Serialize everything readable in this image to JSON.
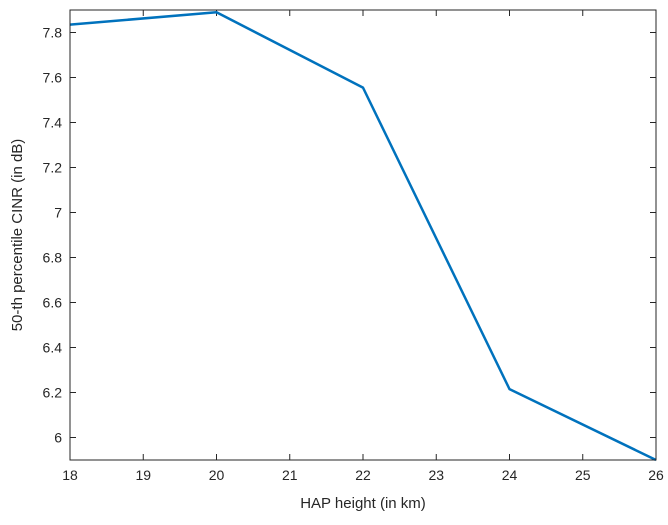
{
  "chart_data": {
    "type": "line",
    "title": "",
    "xlabel": "HAP height (in km)",
    "ylabel": "50-th percentile CINR (in dB)",
    "xlim": [
      18,
      26
    ],
    "ylim": [
      5.9,
      7.9
    ],
    "x_ticks": [
      18,
      19,
      20,
      21,
      22,
      23,
      24,
      25,
      26
    ],
    "y_ticks": [
      6,
      6.2,
      6.4,
      6.6,
      6.8,
      7,
      7.2,
      7.4,
      7.6,
      7.8
    ],
    "grid": false,
    "legend": "none",
    "series": [
      {
        "x": [
          18,
          20,
          22,
          24,
          26
        ],
        "values": [
          7.835,
          7.89,
          7.555,
          6.215,
          5.9
        ],
        "color": "#0072bd"
      }
    ]
  }
}
